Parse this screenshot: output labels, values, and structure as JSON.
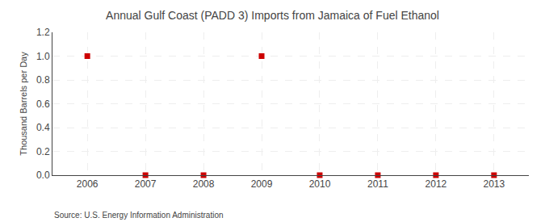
{
  "chart_data": {
    "type": "scatter",
    "title": "Annual Gulf Coast (PADD 3) Imports from Jamaica of Fuel Ethanol",
    "ylabel": "Thousand Barrels per Day",
    "annotations": [
      "Source: U.S. Energy Information Administration"
    ],
    "x": [
      2006,
      2007,
      2008,
      2009,
      2010,
      2011,
      2012,
      2013
    ],
    "values": [
      1.0,
      0.0,
      0.0,
      1.0,
      0.0,
      0.0,
      0.0,
      0.0
    ],
    "color": "#cc0000",
    "marker": "square",
    "xlim": [
      2005.4,
      2013.6
    ],
    "xticks": [
      2006,
      2007,
      2008,
      2009,
      2010,
      2011,
      2012,
      2013
    ],
    "ylim": [
      0.0,
      1.2
    ],
    "yticks": [
      {
        "value": 0.0,
        "label": "0.0"
      },
      0.2,
      0.4,
      0.6,
      0.8,
      {
        "value": 1.0,
        "label": "1.0"
      },
      1.2
    ],
    "grid": true
  }
}
